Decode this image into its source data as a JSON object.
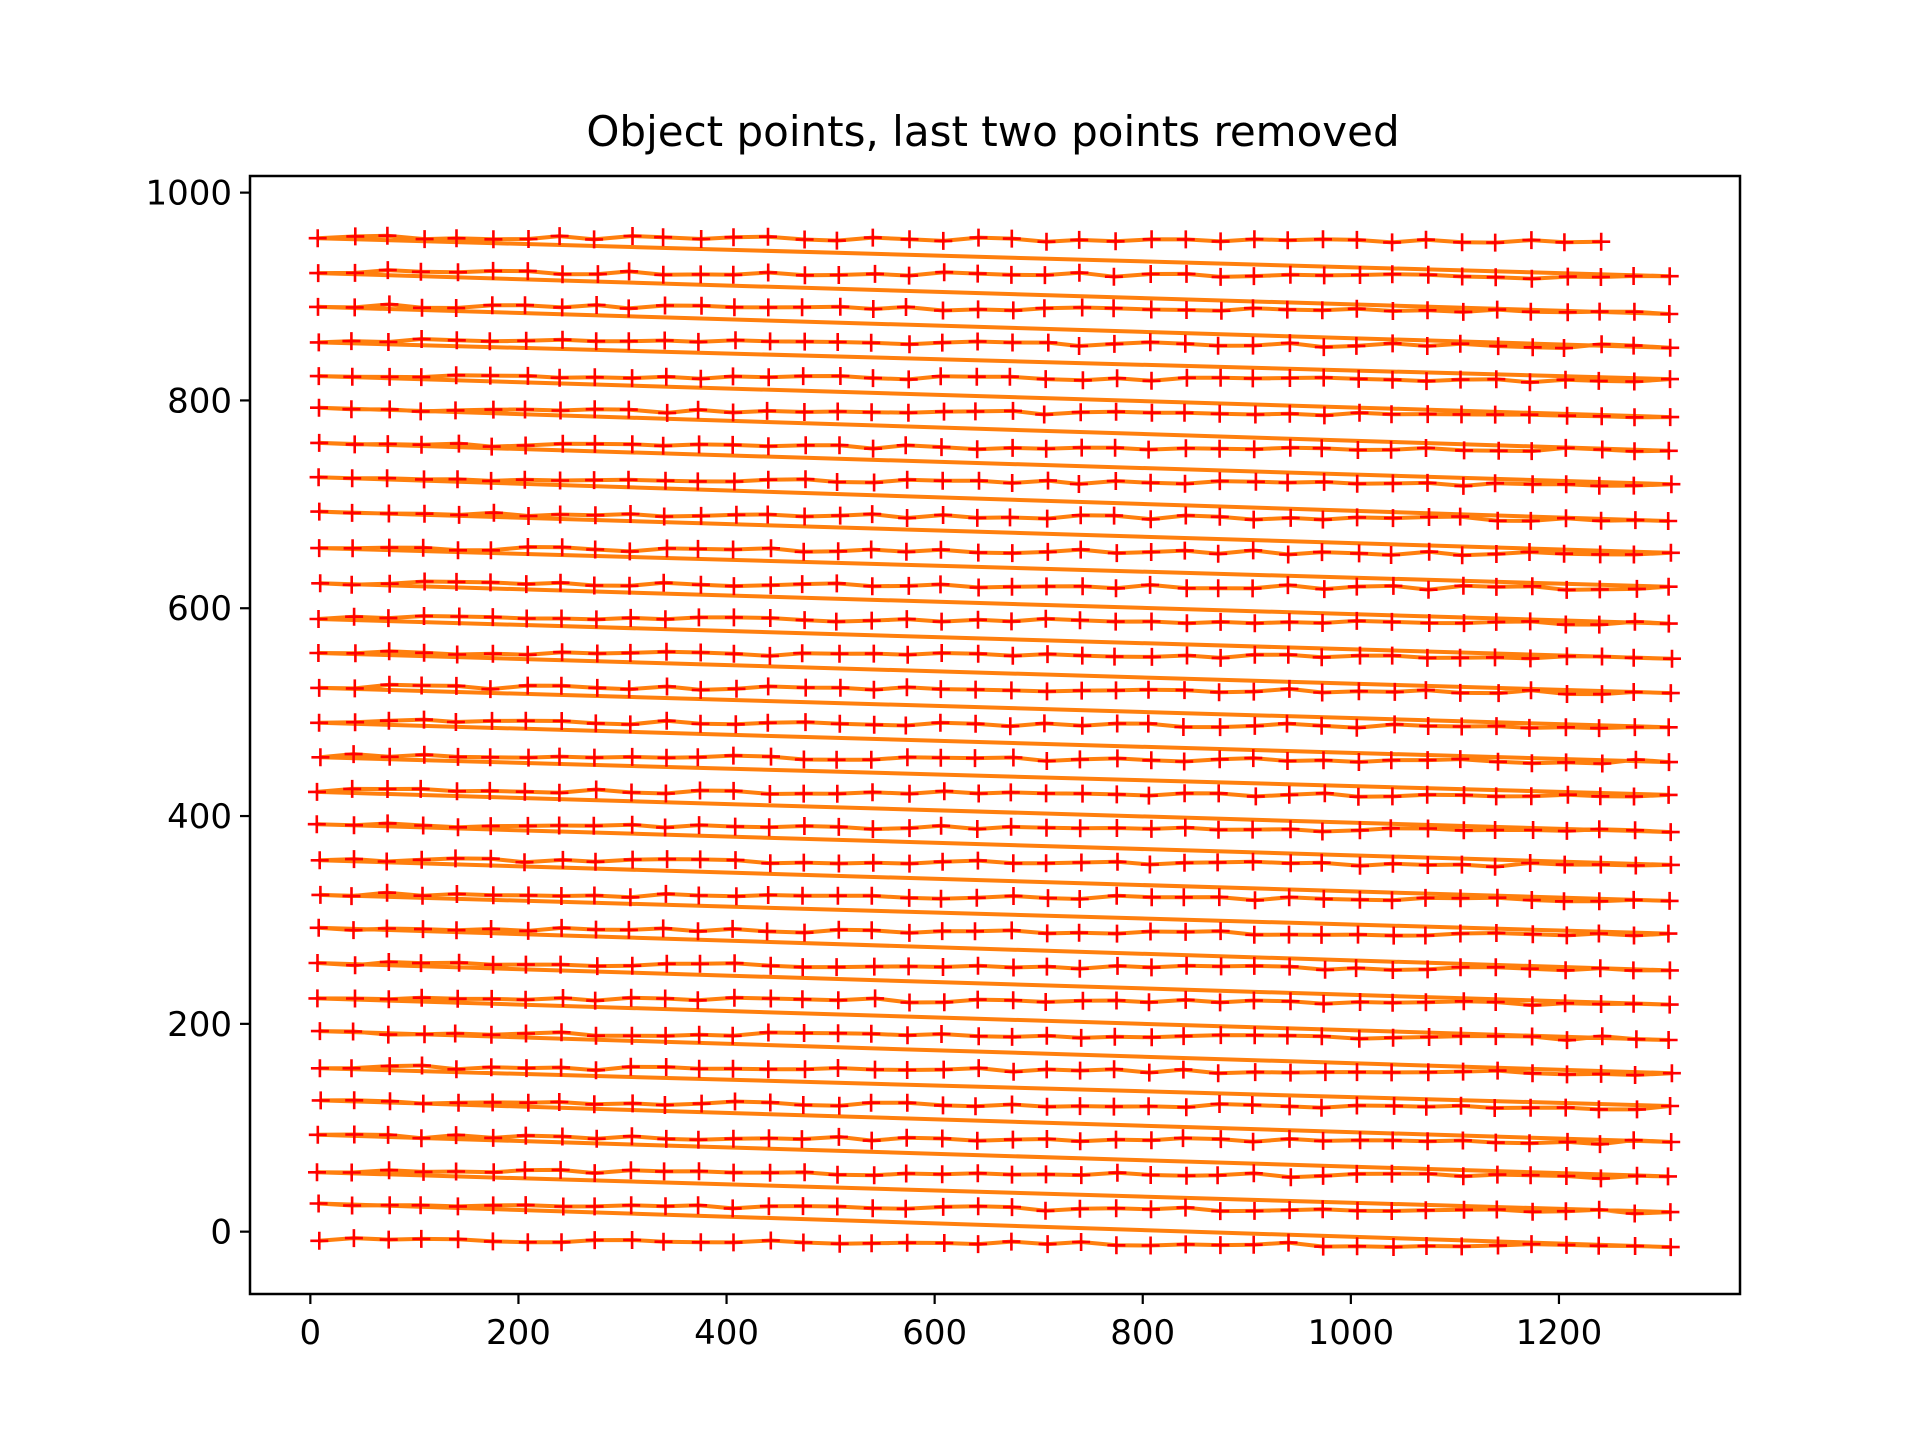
{
  "chart_data": {
    "type": "scatter",
    "title": "Object points, last two points removed",
    "xlabel": "",
    "ylabel": "",
    "xlim": [
      -58,
      1374
    ],
    "ylim": [
      -60,
      1016
    ],
    "x_ticks": [
      0,
      200,
      400,
      600,
      800,
      1000,
      1200
    ],
    "y_ticks": [
      0,
      200,
      400,
      600,
      800,
      1000
    ],
    "grid": false,
    "legend": "none",
    "colors": {
      "line": "#ff7f0e",
      "marker": "#ff0000",
      "frame": "#000000"
    },
    "grid_points": {
      "columns": 40,
      "rows": 30,
      "x_start": 8,
      "x_step": 33.3,
      "y_start": -8,
      "y_step": 33.3,
      "removed_last_points": 2,
      "note": "points ordered row-by-row; the two last points of the top row are removed"
    },
    "series": [
      {
        "name": "connection line",
        "style": "line",
        "color": "#ff7f0e"
      },
      {
        "name": "object points",
        "style": "marker-plus",
        "color": "#ff0000"
      }
    ]
  }
}
